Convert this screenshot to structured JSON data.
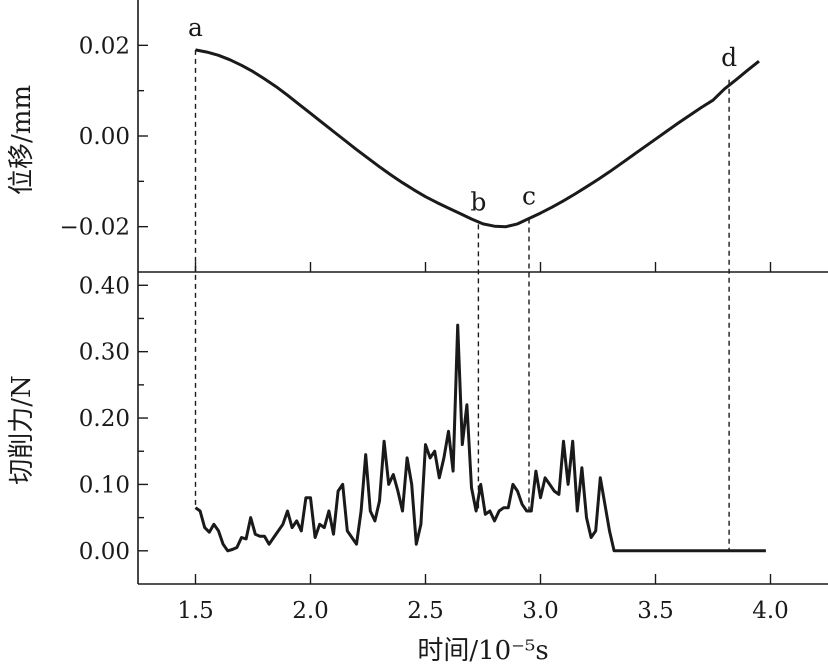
{
  "chart_data": [
    {
      "type": "line",
      "ylabel": "位移/mm",
      "ylim": [
        -0.03,
        0.03
      ],
      "yticks": [
        -0.02,
        0.0,
        0.02
      ],
      "ytick_labels": [
        "−0.02",
        "0.00",
        "0.02"
      ],
      "xlim": [
        1.25,
        4.25
      ],
      "series": [
        {
          "x": [
            1.5,
            1.55,
            1.6,
            1.65,
            1.7,
            1.75,
            1.8,
            1.85,
            1.9,
            1.95,
            2.0,
            2.05,
            2.1,
            2.15,
            2.2,
            2.25,
            2.3,
            2.35,
            2.4,
            2.45,
            2.5,
            2.55,
            2.6,
            2.65,
            2.7,
            2.75,
            2.8,
            2.85,
            2.9,
            2.95,
            3.0,
            3.05,
            3.1,
            3.15,
            3.2,
            3.25,
            3.3,
            3.35,
            3.4,
            3.45,
            3.5,
            3.55,
            3.6,
            3.65,
            3.7,
            3.75,
            3.8,
            3.85,
            3.9,
            3.95
          ],
          "values": [
            0.019,
            0.0185,
            0.0178,
            0.0168,
            0.0156,
            0.0142,
            0.0126,
            0.0109,
            0.009,
            0.007,
            0.005,
            0.003,
            0.001,
            -0.001,
            -0.003,
            -0.0049,
            -0.0068,
            -0.0086,
            -0.0103,
            -0.0119,
            -0.0134,
            -0.0147,
            -0.0159,
            -0.0171,
            -0.0183,
            -0.0194,
            -0.0199,
            -0.02,
            -0.0194,
            -0.0182,
            -0.017,
            -0.0157,
            -0.0143,
            -0.0128,
            -0.0112,
            -0.0096,
            -0.0079,
            -0.0061,
            -0.0043,
            -0.0025,
            -0.0007,
            0.0011,
            0.0029,
            0.0046,
            0.0063,
            0.0079,
            0.0104,
            0.0124,
            0.0145,
            0.0165
          ]
        }
      ],
      "annotations": [
        {
          "text": "a",
          "x": 1.5,
          "y": 0.019
        },
        {
          "text": "b",
          "x": 2.73,
          "y": -0.0195
        },
        {
          "text": "c",
          "x": 2.95,
          "y": -0.0182
        },
        {
          "text": "d",
          "x": 3.82,
          "y": 0.0124
        }
      ]
    },
    {
      "type": "line",
      "xlabel": "时间/10⁻⁵s",
      "ylabel": "切削力/N",
      "ylim": [
        -0.05,
        0.42
      ],
      "yticks": [
        0.0,
        0.1,
        0.2,
        0.3,
        0.4
      ],
      "ytick_labels": [
        "0.00",
        "0.10",
        "0.20",
        "0.30",
        "0.40"
      ],
      "xlim": [
        1.25,
        4.25
      ],
      "xticks": [
        1.5,
        2.0,
        2.5,
        3.0,
        3.5,
        4.0
      ],
      "xtick_labels": [
        "1.5",
        "2.0",
        "2.5",
        "3.0",
        "3.5",
        "4.0"
      ],
      "series": [
        {
          "x": [
            1.5,
            1.52,
            1.54,
            1.56,
            1.58,
            1.6,
            1.62,
            1.64,
            1.66,
            1.68,
            1.7,
            1.72,
            1.74,
            1.76,
            1.78,
            1.8,
            1.82,
            1.84,
            1.86,
            1.88,
            1.9,
            1.92,
            1.94,
            1.96,
            1.98,
            2.0,
            2.02,
            2.04,
            2.06,
            2.08,
            2.1,
            2.12,
            2.14,
            2.16,
            2.18,
            2.2,
            2.22,
            2.24,
            2.26,
            2.28,
            2.3,
            2.32,
            2.34,
            2.36,
            2.38,
            2.4,
            2.42,
            2.44,
            2.46,
            2.48,
            2.5,
            2.52,
            2.54,
            2.56,
            2.58,
            2.6,
            2.62,
            2.64,
            2.66,
            2.68,
            2.7,
            2.72,
            2.74,
            2.76,
            2.78,
            2.8,
            2.82,
            2.84,
            2.86,
            2.88,
            2.9,
            2.92,
            2.94,
            2.96,
            2.98,
            3.0,
            3.02,
            3.04,
            3.06,
            3.08,
            3.1,
            3.12,
            3.14,
            3.16,
            3.18,
            3.2,
            3.22,
            3.24,
            3.26,
            3.28,
            3.3,
            3.32,
            3.34,
            3.36,
            3.38,
            3.4,
            3.42,
            3.44,
            3.46,
            3.48,
            3.5,
            3.52,
            3.54,
            3.56,
            3.58,
            3.6,
            3.62,
            3.64,
            3.66,
            3.68,
            3.7,
            3.72,
            3.74,
            3.76,
            3.78,
            3.8,
            3.82,
            3.84,
            3.86,
            3.88,
            3.9,
            3.92,
            3.94,
            3.96,
            3.98
          ],
          "values": [
            0.065,
            0.06,
            0.035,
            0.028,
            0.04,
            0.03,
            0.01,
            0.0,
            0.002,
            0.005,
            0.02,
            0.018,
            0.05,
            0.025,
            0.022,
            0.022,
            0.01,
            0.02,
            0.03,
            0.04,
            0.06,
            0.035,
            0.045,
            0.03,
            0.08,
            0.08,
            0.02,
            0.04,
            0.035,
            0.06,
            0.025,
            0.09,
            0.1,
            0.03,
            0.02,
            0.01,
            0.06,
            0.145,
            0.06,
            0.045,
            0.075,
            0.165,
            0.1,
            0.115,
            0.09,
            0.06,
            0.14,
            0.1,
            0.01,
            0.04,
            0.16,
            0.14,
            0.15,
            0.11,
            0.14,
            0.18,
            0.12,
            0.34,
            0.16,
            0.22,
            0.095,
            0.06,
            0.1,
            0.055,
            0.06,
            0.045,
            0.06,
            0.065,
            0.065,
            0.1,
            0.09,
            0.07,
            0.06,
            0.06,
            0.12,
            0.08,
            0.11,
            0.1,
            0.09,
            0.085,
            0.165,
            0.1,
            0.165,
            0.06,
            0.125,
            0.05,
            0.02,
            0.03,
            0.11,
            0.07,
            0.03,
            0.0,
            0.0,
            0.0,
            0.0,
            0.0,
            0.0,
            0.0,
            0.0,
            0.0,
            0.0,
            0.0,
            0.0,
            0.0,
            0.0,
            0.0,
            0.0,
            0.0,
            0.0,
            0.0,
            0.0,
            0.0,
            0.0,
            0.0,
            0.0,
            0.0,
            0.0,
            0.0,
            0.0,
            0.0,
            0.0,
            0.0,
            0.0,
            0.0,
            0.0
          ]
        }
      ]
    }
  ],
  "guides": [
    1.5,
    2.73,
    2.95,
    3.82
  ]
}
